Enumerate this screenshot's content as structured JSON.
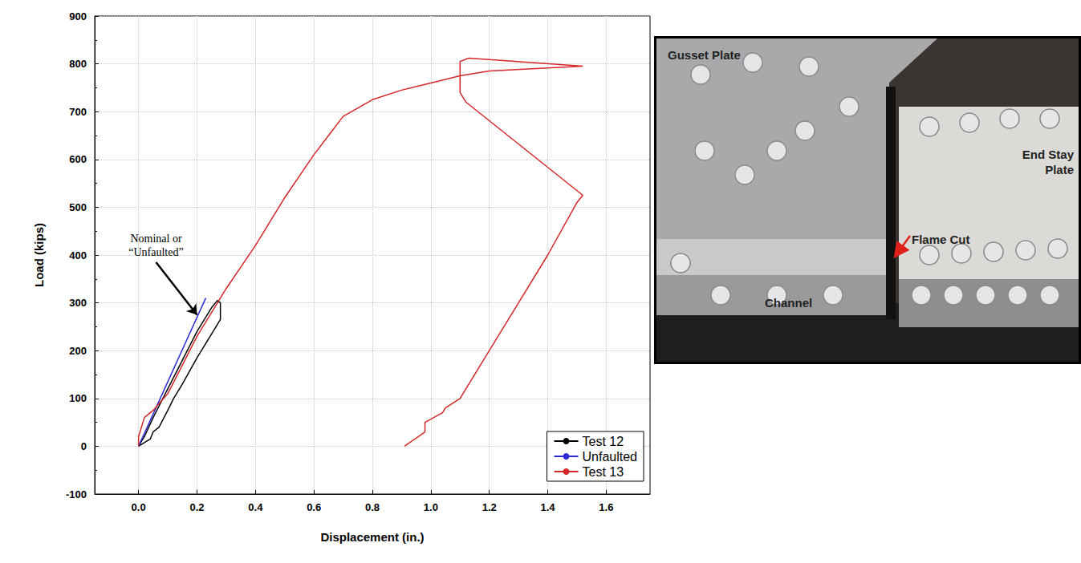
{
  "chart_data": {
    "type": "line",
    "x_label": "Displacement (in.)",
    "y_label": "Load (kips)",
    "xlim": [
      -0.15,
      1.75
    ],
    "ylim": [
      -100,
      900
    ],
    "xticks": [
      {
        "value": 0,
        "label": "0.0"
      },
      0.2,
      0.4,
      0.6,
      0.8,
      {
        "value": 1,
        "label": "1.0"
      },
      1.2,
      1.4,
      1.6
    ],
    "yticks": [
      -100,
      0,
      100,
      200,
      300,
      400,
      500,
      600,
      700,
      800,
      900
    ],
    "grid": true,
    "legend": "lower right",
    "series": [
      {
        "name": "Test 12",
        "color": "#000000",
        "line_style": "solid",
        "x": [
          0,
          0.02,
          0.05,
          0.1,
          0.15,
          0.2,
          0.25,
          0.27,
          0.28,
          0.28,
          0.25,
          0.2,
          0.15,
          0.12,
          0.1,
          0.07,
          0.05,
          0.04,
          0
        ],
        "values": [
          0,
          20,
          60,
          120,
          180,
          240,
          290,
          305,
          300,
          265,
          235,
          185,
          130,
          100,
          75,
          40,
          30,
          15,
          0
        ]
      },
      {
        "name": "Unfaulted",
        "color": "#2b2bd6",
        "line_style": "solid",
        "x": [
          0,
          0.23
        ],
        "values": [
          0,
          310
        ]
      },
      {
        "name": "Test 13",
        "color": "#d62728",
        "line_style": "solid",
        "x": [
          0,
          0,
          0.02,
          0.05,
          0.1,
          0.15,
          0.2,
          0.25,
          0.3,
          0.4,
          0.5,
          0.6,
          0.65,
          0.7,
          0.8,
          0.9,
          1.0,
          1.1,
          1.2,
          1.52,
          1.13,
          1.1,
          1.1,
          1.12,
          1.52,
          1.5,
          1.4,
          1.3,
          1.2,
          1.1,
          1.05,
          1.04,
          0.98,
          0.98,
          0.91
        ],
        "values": [
          0,
          20,
          60,
          75,
          110,
          170,
          230,
          280,
          330,
          420,
          520,
          610,
          650,
          690,
          725,
          745,
          760,
          775,
          785,
          795,
          812,
          805,
          740,
          720,
          525,
          510,
          400,
          300,
          200,
          100,
          80,
          70,
          50,
          30,
          0
        ]
      }
    ],
    "annotations": [
      {
        "text": "Nominal or\n“Unfaulted”",
        "xy": [
          0.2,
          275
        ],
        "xytext": [
          0.06,
          385
        ]
      }
    ]
  },
  "photo": {
    "labels": [
      "Gusset Plate",
      "End Stay\nPlate",
      "Flame Cut",
      "Channel"
    ]
  }
}
